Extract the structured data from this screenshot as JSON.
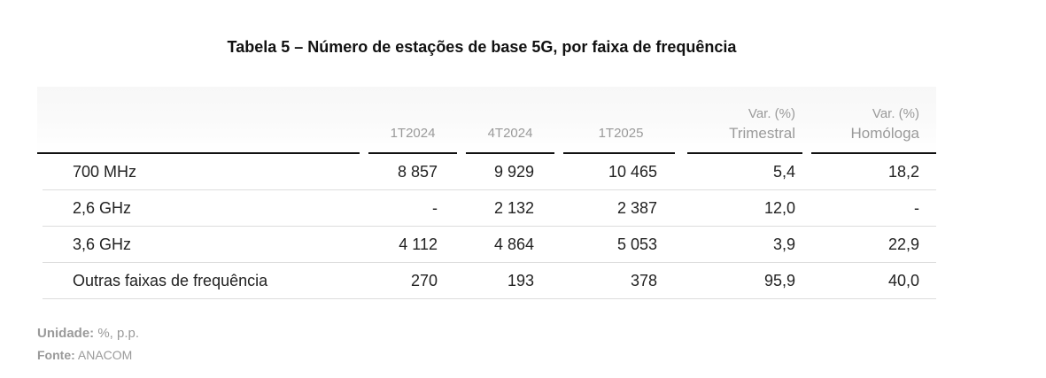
{
  "title": "Tabela 5 – Número de estações de base 5G, por faixa de frequência",
  "columns": [
    {
      "line1": "",
      "line2": "1T2024"
    },
    {
      "line1": "",
      "line2": "4T2024"
    },
    {
      "line1": "",
      "line2": "1T2025"
    },
    {
      "line1": "Var. (%)",
      "line2": "Trimestral"
    },
    {
      "line1": "Var. (%)",
      "line2": "Homóloga"
    }
  ],
  "rows": [
    {
      "label": "700 MHz",
      "values": [
        "8 857",
        "9 929",
        "10 465",
        "5,4",
        "18,2"
      ]
    },
    {
      "label": "2,6 GHz",
      "values": [
        "-",
        "2 132",
        "2 387",
        "12,0",
        "-"
      ]
    },
    {
      "label": "3,6 GHz",
      "values": [
        "4 112",
        "4 864",
        "5 053",
        "3,9",
        "22,9"
      ]
    },
    {
      "label": "Outras faixas de frequência",
      "values": [
        "270",
        "193",
        "378",
        "95,9",
        "40,0"
      ]
    }
  ],
  "notes": {
    "unit_label": "Unidade:",
    "unit_value": "%, p.p.",
    "source_label": "Fonte:",
    "source_value": "ANACOM"
  }
}
